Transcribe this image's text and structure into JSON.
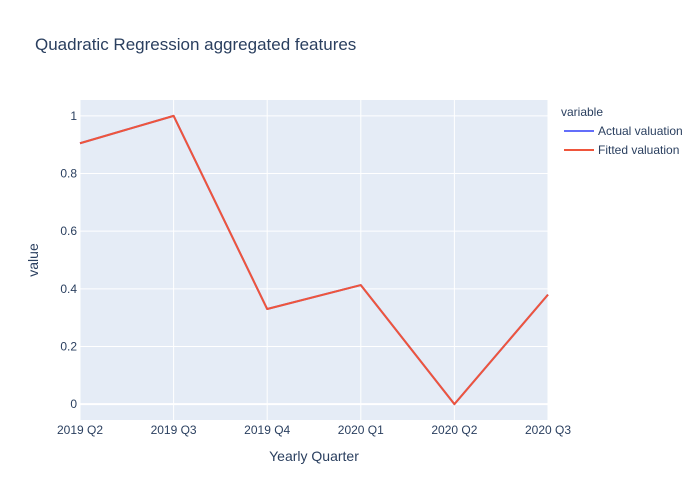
{
  "chart_data": {
    "type": "line",
    "title": "Quadratic Regression aggregated features",
    "xlabel": "Yearly Quarter",
    "ylabel": "value",
    "categories": [
      "2019 Q2",
      "2019 Q3",
      "2019 Q4",
      "2020 Q1",
      "2020 Q2",
      "2020 Q3"
    ],
    "ylim": [
      -0.055,
      1.055
    ],
    "yticks": [
      0,
      0.2,
      0.4,
      0.6,
      0.8,
      1
    ],
    "ytick_labels": [
      "0",
      "0.2",
      "0.4",
      "0.6",
      "0.8",
      "1"
    ],
    "grid": true,
    "legend": {
      "title": "variable",
      "placement": "top-right"
    },
    "series": [
      {
        "name": "Actual valuation",
        "color": "#636efa",
        "values": [
          0.905,
          1.0,
          0.33,
          0.413,
          0.0,
          0.38
        ]
      },
      {
        "name": "Fitted valuation",
        "color": "#ef553b",
        "values": [
          0.905,
          1.0,
          0.33,
          0.413,
          0.0,
          0.38
        ]
      }
    ],
    "colors": {
      "plot_background": "#e5ecf6",
      "grid": "#ffffff",
      "text": "#2a3f5f"
    }
  }
}
